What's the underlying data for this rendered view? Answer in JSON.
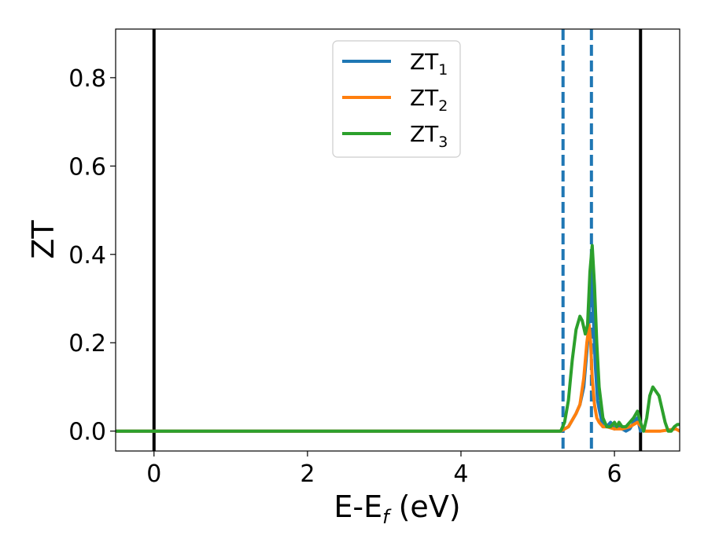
{
  "chart_data": {
    "type": "line",
    "xlabel": "E-E",
    "xlabel_sub": "f",
    "xlabel_unit": " (eV)",
    "ylabel": "ZT",
    "xlim": [
      -0.5,
      6.85
    ],
    "ylim": [
      -0.045,
      0.91
    ],
    "xticks": [
      0,
      2,
      4,
      6
    ],
    "xtick_labels": [
      "0",
      "2",
      "4",
      "6"
    ],
    "yticks": [
      0.0,
      0.2,
      0.4,
      0.6,
      0.8
    ],
    "ytick_labels": [
      "0.0",
      "0.2",
      "0.4",
      "0.6",
      "0.8"
    ],
    "grid": false,
    "legend_position": "top-center",
    "vlines": [
      {
        "x": 0.0,
        "style": "solid",
        "color": "#000000"
      },
      {
        "x": 5.33,
        "style": "dashed",
        "color": "#1f77b4"
      },
      {
        "x": 5.7,
        "style": "dashed",
        "color": "#1f77b4"
      },
      {
        "x": 6.34,
        "style": "solid",
        "color": "#000000"
      }
    ],
    "series": [
      {
        "name": "ZT",
        "sub": "1",
        "color": "#1f77b4",
        "x": [
          -0.5,
          5.3,
          5.4,
          5.5,
          5.55,
          5.6,
          5.64,
          5.66,
          5.68,
          5.7,
          5.72,
          5.75,
          5.78,
          5.8,
          5.85,
          5.9,
          5.95,
          6.0,
          6.05,
          6.1,
          6.15,
          6.2,
          6.25,
          6.3,
          6.34
        ],
        "y": [
          0.0,
          0.0,
          0.01,
          0.04,
          0.06,
          0.1,
          0.18,
          0.22,
          0.3,
          0.38,
          0.28,
          0.15,
          0.07,
          0.05,
          0.01,
          0.01,
          0.02,
          0.005,
          0.01,
          0.005,
          0.0,
          0.005,
          0.02,
          0.03,
          0.0
        ]
      },
      {
        "name": "ZT",
        "sub": "2",
        "color": "#ff7f0e",
        "x": [
          -0.5,
          5.3,
          5.4,
          5.5,
          5.55,
          5.6,
          5.64,
          5.67,
          5.69,
          5.71,
          5.74,
          5.77,
          5.8,
          5.85,
          5.9,
          6.0,
          6.1,
          6.2,
          6.3,
          6.4,
          6.6,
          6.8,
          6.85
        ],
        "y": [
          0.0,
          0.0,
          0.01,
          0.04,
          0.06,
          0.12,
          0.2,
          0.24,
          0.2,
          0.12,
          0.06,
          0.03,
          0.02,
          0.01,
          0.01,
          0.005,
          0.005,
          0.01,
          0.02,
          0.0,
          0.0,
          0.005,
          0.0
        ]
      },
      {
        "name": "ZT",
        "sub": "3",
        "color": "#2ca02c",
        "x": [
          -0.5,
          5.3,
          5.35,
          5.4,
          5.45,
          5.5,
          5.55,
          5.58,
          5.62,
          5.65,
          5.68,
          5.71,
          5.74,
          5.77,
          5.8,
          5.85,
          5.9,
          5.95,
          6.0,
          6.03,
          6.06,
          6.1,
          6.15,
          6.2,
          6.25,
          6.3,
          6.34,
          6.38,
          6.42,
          6.46,
          6.5,
          6.54,
          6.58,
          6.62,
          6.66,
          6.7,
          6.74,
          6.78,
          6.82,
          6.85
        ],
        "y": [
          0.0,
          0.0,
          0.02,
          0.07,
          0.16,
          0.23,
          0.26,
          0.25,
          0.22,
          0.24,
          0.36,
          0.42,
          0.33,
          0.2,
          0.1,
          0.03,
          0.01,
          0.01,
          0.02,
          0.01,
          0.02,
          0.01,
          0.01,
          0.02,
          0.03,
          0.045,
          0.02,
          0.0,
          0.03,
          0.08,
          0.1,
          0.09,
          0.08,
          0.05,
          0.02,
          0.0,
          0.0,
          0.01,
          0.015,
          0.015
        ]
      }
    ]
  }
}
